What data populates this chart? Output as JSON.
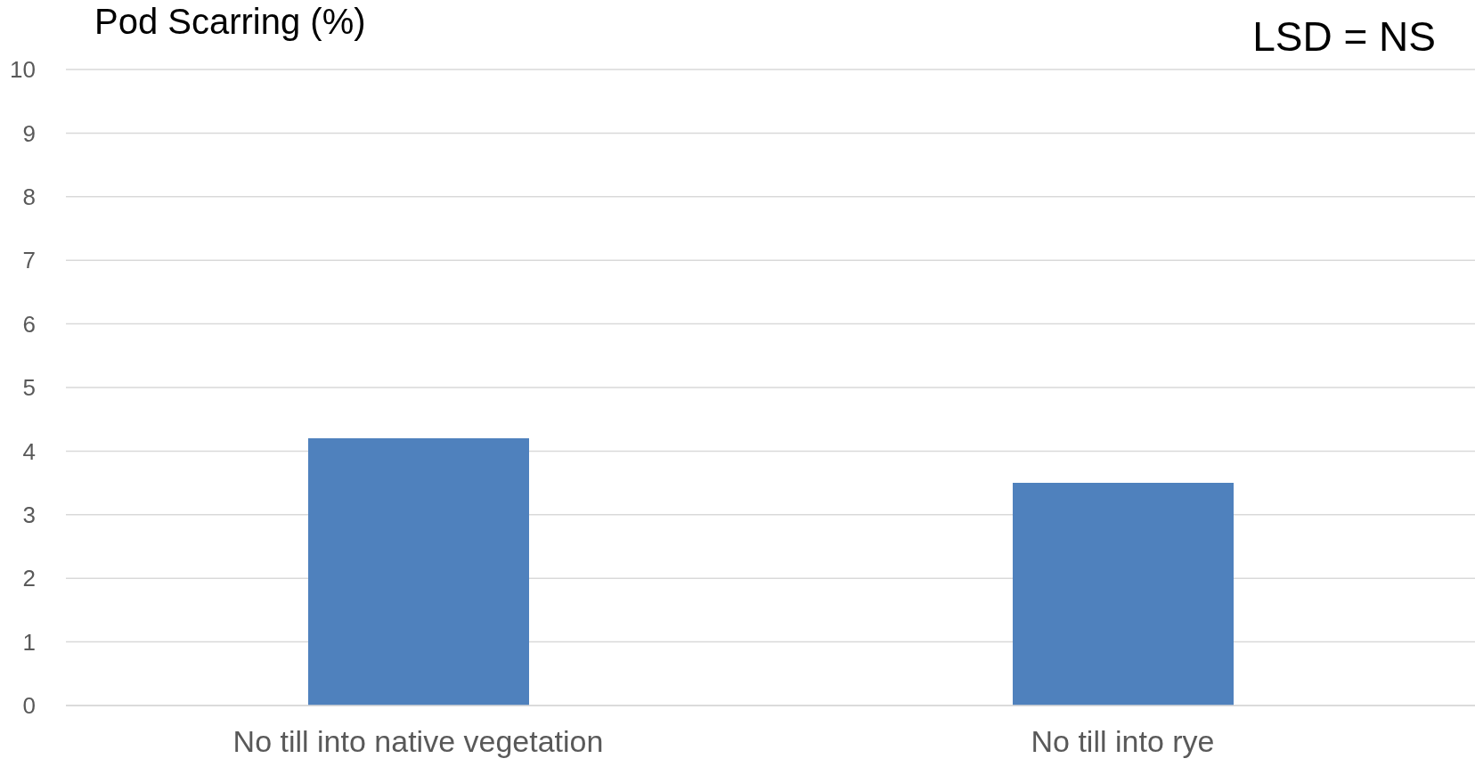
{
  "chart_data": {
    "type": "bar",
    "ylabel": "Pod Scarring (%)",
    "annotations": [
      "LSD = NS"
    ],
    "categories": [
      "No till into native vegetation",
      "No till into rye"
    ],
    "values": [
      4.2,
      3.5
    ],
    "color": "#4f81bd",
    "ylim": [
      0,
      10
    ],
    "yticks": [
      0,
      1,
      2,
      3,
      4,
      5,
      6,
      7,
      8,
      9,
      10
    ],
    "grid": "y"
  }
}
